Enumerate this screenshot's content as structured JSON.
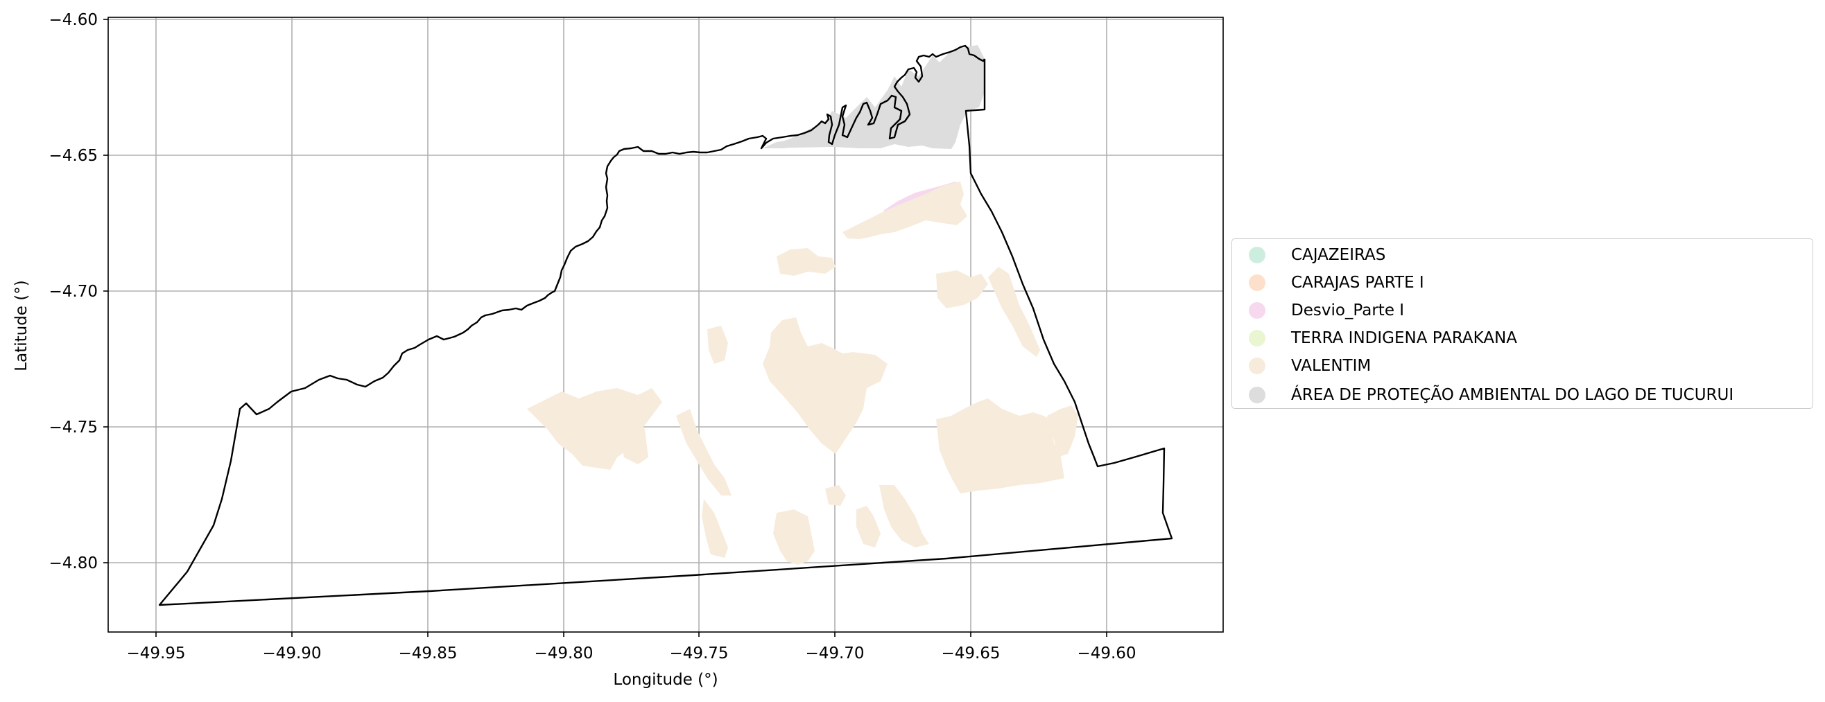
{
  "map": {
    "xlabel": "Longitude (°)",
    "ylabel": "Latitude (°)",
    "xlim": [
      -49.968,
      -49.558
    ],
    "ylim": [
      -4.826,
      -4.6
    ],
    "x_ticks": [
      "−49.95",
      "−49.90",
      "−49.85",
      "−49.80",
      "−49.75",
      "−49.70",
      "−49.65",
      "−49.60"
    ],
    "y_ticks": [
      "−4.60",
      "−4.65",
      "−4.70",
      "−4.75",
      "−4.80"
    ],
    "grid": true,
    "legend_position": "right"
  },
  "legend": {
    "items": [
      {
        "label": "CAJAZEIRAS",
        "color": "#cdeedf"
      },
      {
        "label": "CARAJAS PARTE I",
        "color": "#fde0cb"
      },
      {
        "label": "Desvio_Parte I",
        "color": "#f6d9ee"
      },
      {
        "label": "TERRA INDIGENA PARAKANA",
        "color": "#eaf6d2"
      },
      {
        "label": "VALENTIM",
        "color": "#f7ebdc"
      },
      {
        "label": "ÁREA DE PROTEÇÃO AMBIENTAL DO LAGO DE TUCURUI",
        "color": "#dddddd"
      }
    ]
  },
  "layers": {
    "boundary_color": "#000000",
    "valentim_color": "#f7ebdc",
    "apa_color": "#dddddd",
    "desvio_color": "#f6d9ee"
  }
}
